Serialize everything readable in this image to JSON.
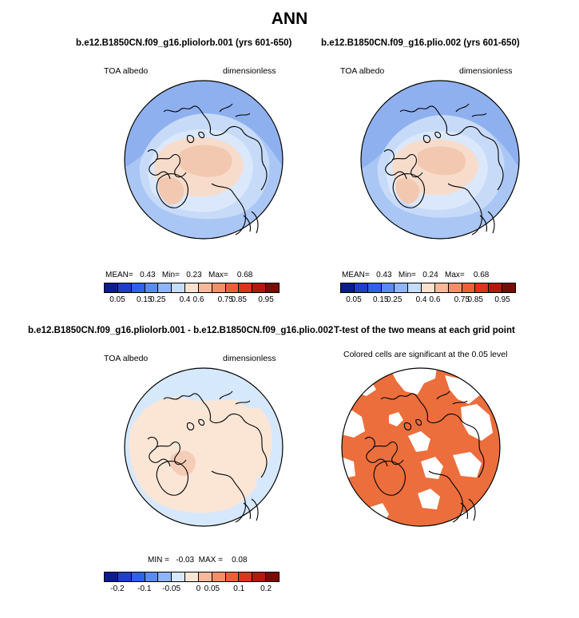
{
  "title": "ANN",
  "panels": [
    {
      "title": "b.e12.B1850CN.f09_g16.pliolorb.001 (yrs 601-650)",
      "variable": "TOA albedo",
      "units": "dimensionless",
      "stats": {
        "mean_label": "MEAN=",
        "mean": "0.43",
        "min_label": "Min=",
        "min": "0.23",
        "max_label": "Max=",
        "max": "0.68"
      }
    },
    {
      "title": "b.e12.B1850CN.f09_g16.plio.002 (yrs 601-650)",
      "variable": "TOA albedo",
      "units": "dimensionless",
      "stats": {
        "mean_label": "MEAN=",
        "mean": "0.43",
        "min_label": "Min=",
        "min": "0.24",
        "max_label": "Max=",
        "max": "0.68"
      }
    },
    {
      "title": "b.e12.B1850CN.f09_g16.pliolorb.001 - b.e12.B1850CN.f09_g16.plio.002",
      "variable": "TOA albedo",
      "units": "dimensionless",
      "stats": {
        "min_label": "MIN =",
        "min": "-0.03",
        "max_label": "MAX =",
        "max": "0.08"
      }
    },
    {
      "title": "T-test of the two means at each grid point",
      "subtitle": "Colored cells are significant at the 0.05 level"
    }
  ],
  "colorbars": {
    "albedo": {
      "colors": [
        "#0b1d8c",
        "#1f3fc8",
        "#2f62e6",
        "#5a8cf0",
        "#8fb4f7",
        "#c6dcfb",
        "#fbe1cf",
        "#f7b99a",
        "#f28f67",
        "#ea6139",
        "#d8361d",
        "#b01a0b",
        "#7a0b04"
      ],
      "ticks": [
        "0.05",
        "0.15",
        "0.25",
        "0.4",
        "0.6",
        "0.75",
        "0.85",
        "0.95"
      ]
    },
    "difference": {
      "colors": [
        "#0b1d8c",
        "#1f3fc8",
        "#2f62e6",
        "#5a8cf0",
        "#8fb4f7",
        "#d6e8fc",
        "#fbe6d6",
        "#f7b99a",
        "#f28f67",
        "#ea6139",
        "#d8361d",
        "#b01a0b",
        "#7a0b04"
      ],
      "ticks": [
        "-0.2",
        "-0.1",
        "-0.05",
        "0",
        "0.05",
        "0.1",
        "0.2"
      ]
    }
  },
  "map_colors": {
    "ocean_low": "#8fb0ef",
    "ocean_mid": "#aac6f4",
    "subpolar": "#c7dbf9",
    "ice_edge": "#dbe8fb",
    "arctic": "#f7dccb",
    "arctic_core": "#f3c8b0",
    "diff_base": "#d6e8fc",
    "diff_pos": "#fbe6d6",
    "diff_pos2": "#f5cdb6",
    "significant": "#ec6e3c",
    "coast": "#000000"
  }
}
